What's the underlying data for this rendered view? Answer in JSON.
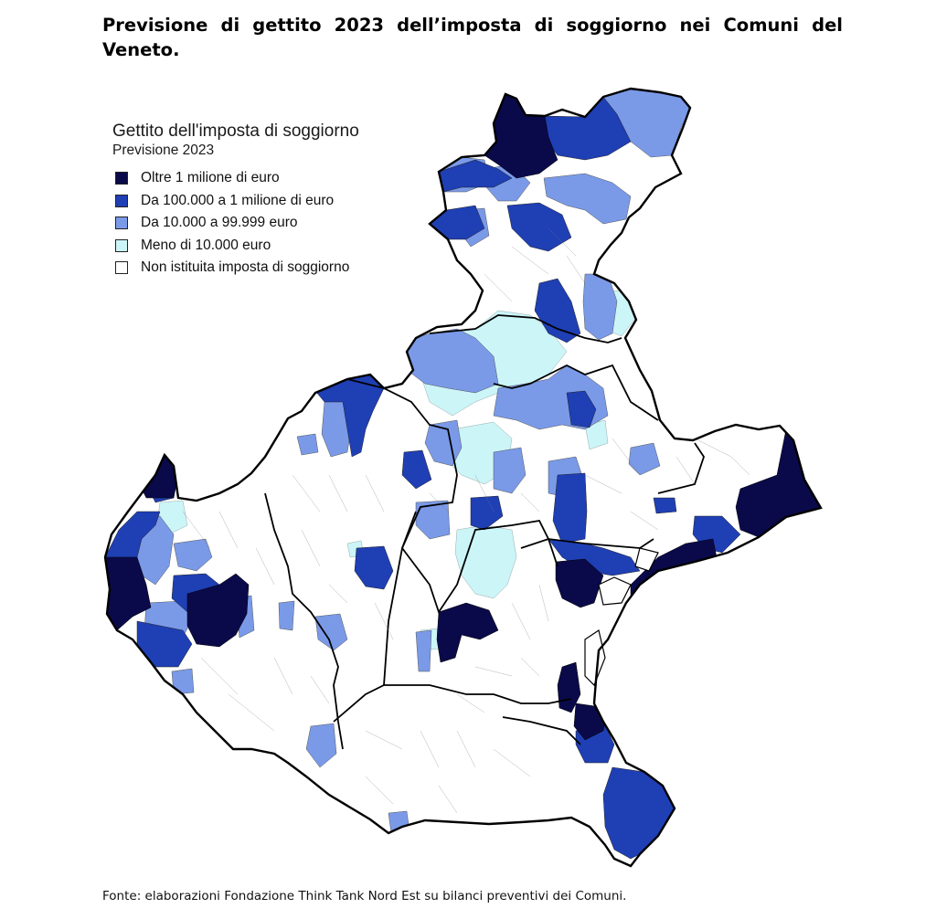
{
  "title": "Previsione di gettito 2023 dell’imposta di soggiorno nei Comuni del Veneto.",
  "legend": {
    "title": "Gettito dell'imposta di soggiorno",
    "subtitle": "Previsione 2023",
    "items": [
      {
        "label": "Oltre 1 milione di euro",
        "color": "#0a0a4a"
      },
      {
        "label": "Da 100.000 a 1 milione di euro",
        "color": "#1f3fb4"
      },
      {
        "label": "Da 10.000 a 99.999 euro",
        "color": "#7a9ae8"
      },
      {
        "label": "Meno di 10.000 euro",
        "color": "#ccf5f8"
      },
      {
        "label": "Non istituita imposta di soggiorno",
        "color": "#ffffff"
      }
    ]
  },
  "source": "Fonte: elaborazioni Fondazione Think Tank Nord Est su bilanci preventivi dei Comuni."
}
